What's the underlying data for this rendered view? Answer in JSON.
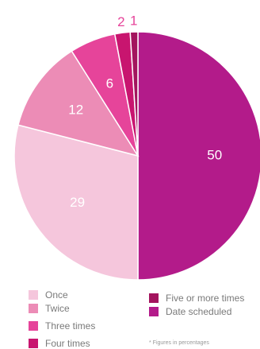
{
  "chart_data": {
    "type": "pie",
    "slices": [
      {
        "label": "Date scheduled",
        "value": 50,
        "value_label": "50",
        "color": "#b31b8a",
        "label_color": "#ffffff"
      },
      {
        "label": "Once",
        "value": 29,
        "value_label": "29",
        "color": "#f5c6dc",
        "label_color": "#ffffff"
      },
      {
        "label": "Twice",
        "value": 12,
        "value_label": "12",
        "color": "#ec8cb6",
        "label_color": "#ffffff"
      },
      {
        "label": "Three times",
        "value": 6,
        "value_label": "6",
        "color": "#e6449a",
        "label_color": "#ffffff"
      },
      {
        "label": "Four times",
        "value": 2,
        "value_label": "2",
        "color": "#c8156f",
        "label_color": "#e6449a"
      },
      {
        "label": "Five or more times",
        "value": 1,
        "value_label": "1",
        "color": "#a3145e",
        "label_color": "#e6449a"
      }
    ],
    "legend": [
      {
        "label": "Once",
        "color": "#f5c6dc"
      },
      {
        "label": "Twice",
        "color": "#ec8cb6"
      },
      {
        "label": "Three times",
        "color": "#e6449a"
      },
      {
        "label": "Four times",
        "color": "#c8156f"
      },
      {
        "label": "Five or more times",
        "color": "#a3145e"
      },
      {
        "label": "Date scheduled",
        "color": "#b31b8a"
      }
    ],
    "footnote": "* Figures in percentages"
  }
}
